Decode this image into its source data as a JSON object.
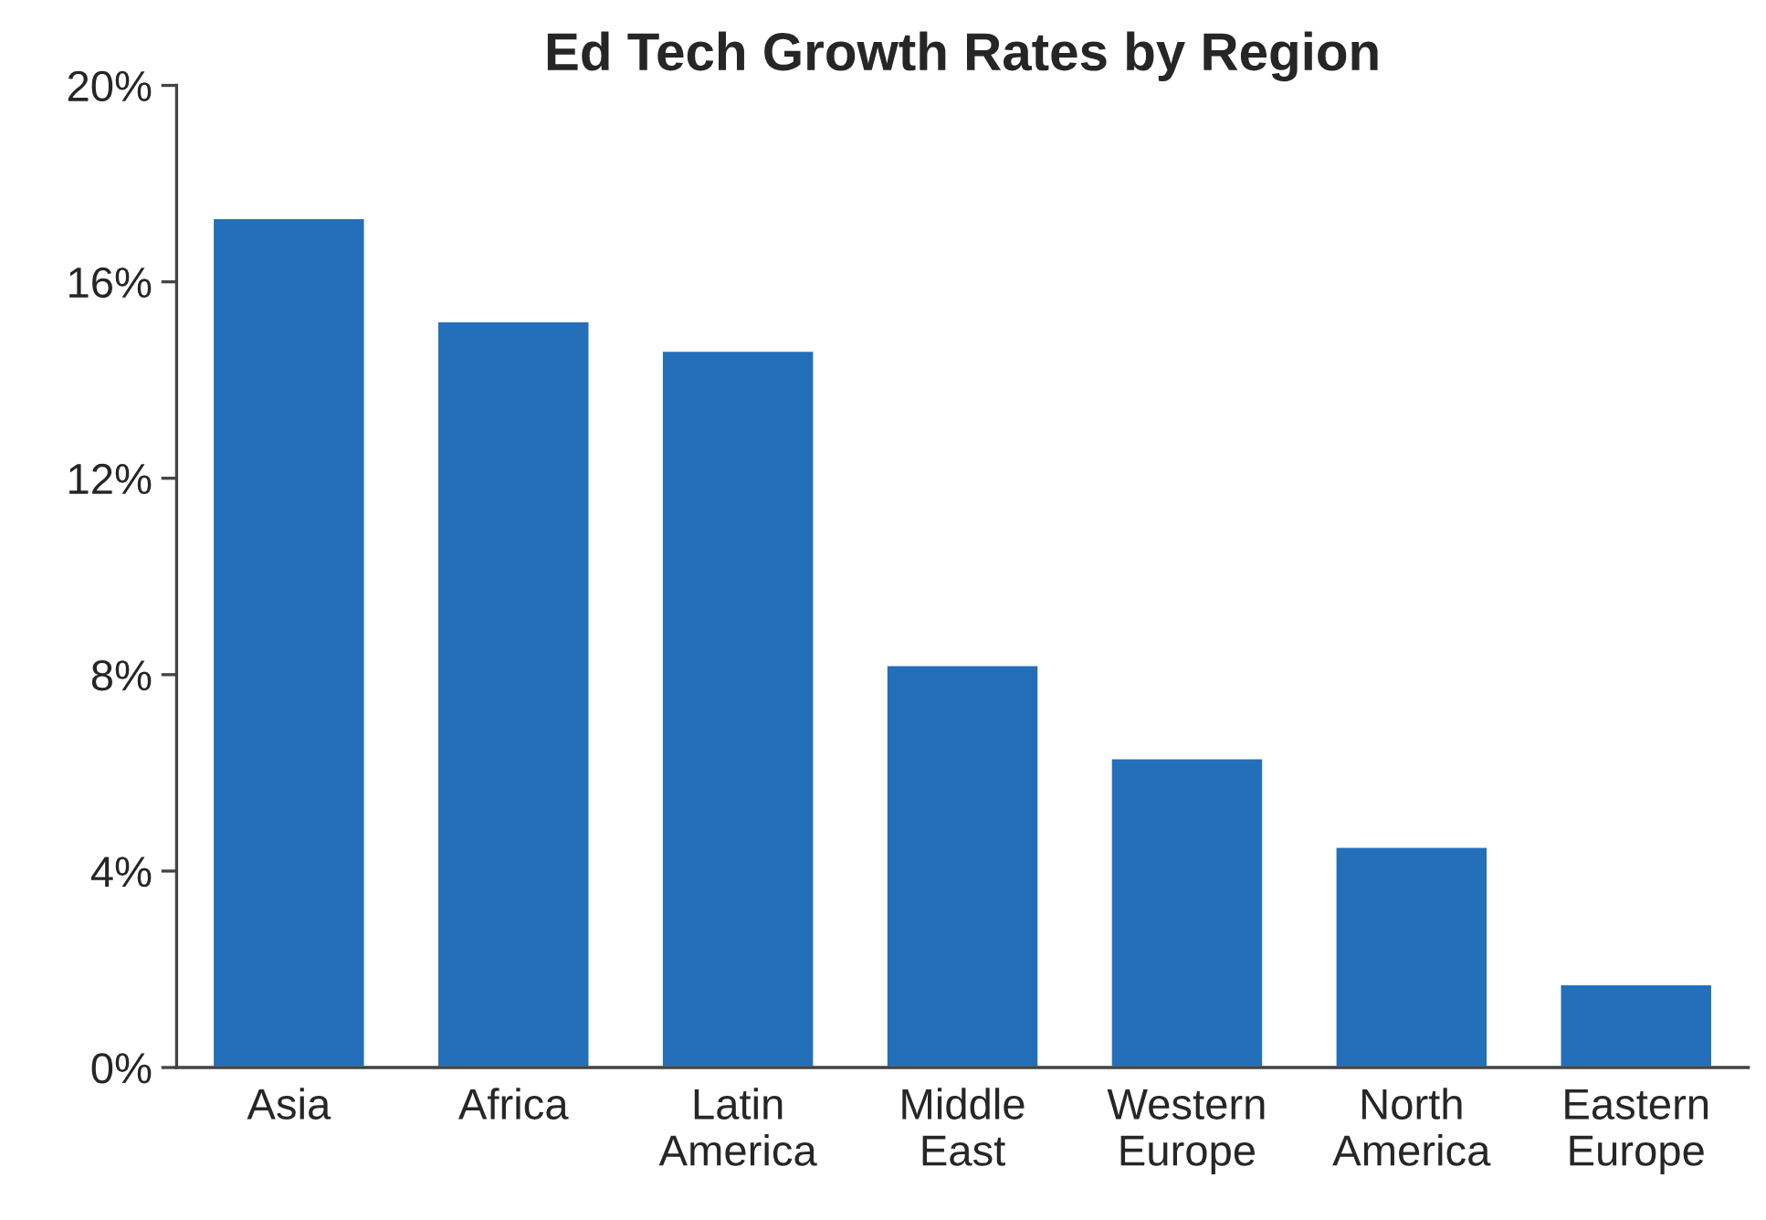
{
  "chart_data": {
    "type": "bar",
    "title": "Ed Tech Growth Rates by Region",
    "categories": [
      "Asia",
      "Africa",
      "Latin\nAmerica",
      "Middle\nEast",
      "Western\nEurope",
      "North\nAmerica",
      "Eastern\nEurope"
    ],
    "values": [
      17.3,
      15.2,
      14.6,
      8.2,
      6.3,
      4.5,
      1.7
    ],
    "color": "#236fb9",
    "ylim": [
      0,
      20
    ],
    "yticks": [
      {
        "value": 0,
        "label": "0%"
      },
      {
        "value": 4,
        "label": "4%"
      },
      {
        "value": 8,
        "label": "8%"
      },
      {
        "value": 12,
        "label": "12%"
      },
      {
        "value": 16,
        "label": "16%"
      },
      {
        "value": 20,
        "label": "20%"
      }
    ],
    "grid": false
  }
}
